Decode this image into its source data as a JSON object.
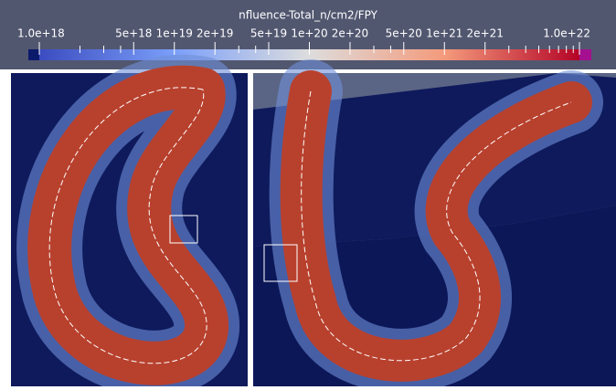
{
  "colorbar": {
    "title": "nfluence-Total_n/cm2/FPY",
    "log_scale": true,
    "range": [
      1e+18,
      1e+22
    ],
    "ticks": [
      {
        "value": 1e+18,
        "label": "1.0e+18"
      },
      {
        "value": 5e+18,
        "label": "5e+18"
      },
      {
        "value": 1e+19,
        "label": "1e+19"
      },
      {
        "value": 2e+19,
        "label": "2e+19"
      },
      {
        "value": 5e+19,
        "label": "5e+19"
      },
      {
        "value": 1e+20,
        "label": "1e+20"
      },
      {
        "value": 2e+20,
        "label": "2e+20"
      },
      {
        "value": 5e+20,
        "label": "5e+20"
      },
      {
        "value": 1e+21,
        "label": "1e+21"
      },
      {
        "value": 2e+21,
        "label": "2e+21"
      },
      {
        "value": 1e+22,
        "label": "1.0e+22"
      }
    ],
    "minor_ticks": [
      2e+18,
      3e+18,
      4e+18,
      3e+19,
      4e+19,
      3e+20,
      4e+20,
      3e+21,
      4e+21,
      5e+21,
      6e+21,
      7e+21,
      8e+21,
      9e+21
    ]
  }
}
